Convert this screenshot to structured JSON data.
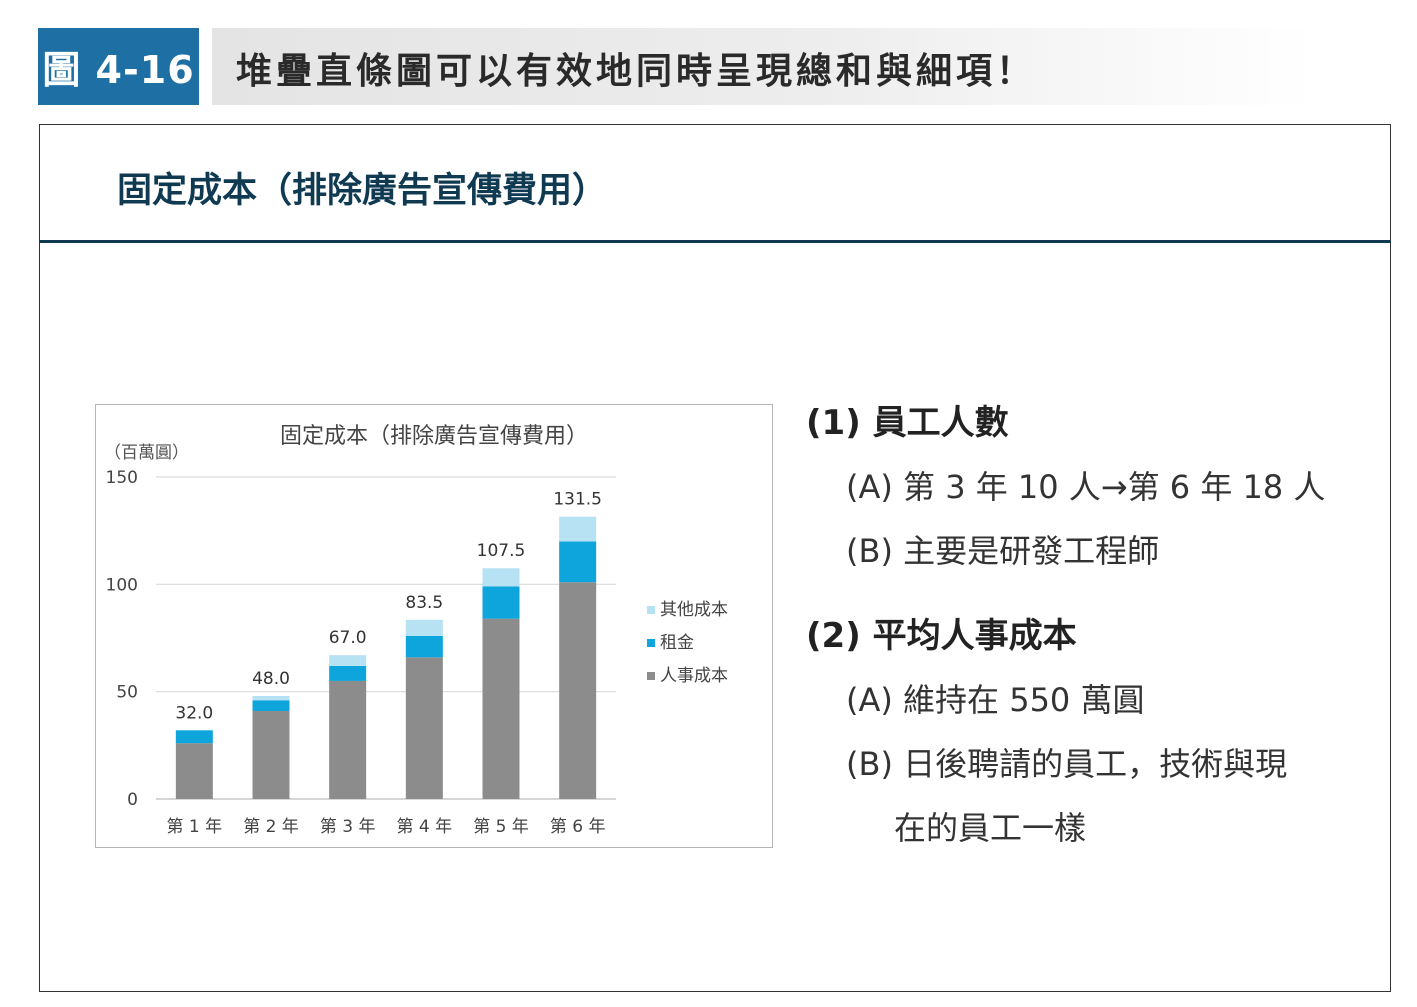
{
  "figure": {
    "label": "圖 4-16",
    "title": "堆疊直條圖可以有效地同時呈現總和與細項！"
  },
  "section_title": "固定成本（排除廣告宣傳費用）",
  "chart_data": {
    "type": "bar",
    "stacked": true,
    "title": "固定成本（排除廣告宣傳費用）",
    "ylabel": "（百萬圓）",
    "xlabel": "",
    "ylim": [
      0,
      150
    ],
    "yticks": [
      0,
      50,
      100,
      150
    ],
    "grid": true,
    "legend_position": "right",
    "categories": [
      "第 1 年",
      "第 2 年",
      "第 3 年",
      "第 4 年",
      "第 5 年",
      "第 6 年"
    ],
    "series": [
      {
        "name": "人事成本",
        "color": "#8c8c8c",
        "values": [
          26,
          41,
          55,
          66,
          84,
          101
        ]
      },
      {
        "name": "租金",
        "color": "#0ea5dc",
        "values": [
          6,
          5,
          7,
          10,
          15,
          19
        ]
      },
      {
        "name": "其他成本",
        "color": "#b7e2f4",
        "values": [
          0,
          2,
          5,
          7.5,
          8.5,
          11.5
        ]
      }
    ],
    "totals": [
      32.0,
      48.0,
      67.0,
      83.5,
      107.5,
      131.5
    ],
    "total_labels": [
      "32.0",
      "48.0",
      "67.0",
      "83.5",
      "107.5",
      "131.5"
    ]
  },
  "notes": {
    "n1": {
      "heading": "(1) 員工人數",
      "a": "(A) 第 3 年 10 人→第 6 年 18 人",
      "b": "(B) 主要是研發工程師"
    },
    "n2": {
      "heading": "(2) 平均人事成本",
      "a": "(A) 維持在 550 萬圓",
      "b": "(B) 日後聘請的員工，技術與現",
      "b_cont": "在的員工一樣"
    }
  }
}
